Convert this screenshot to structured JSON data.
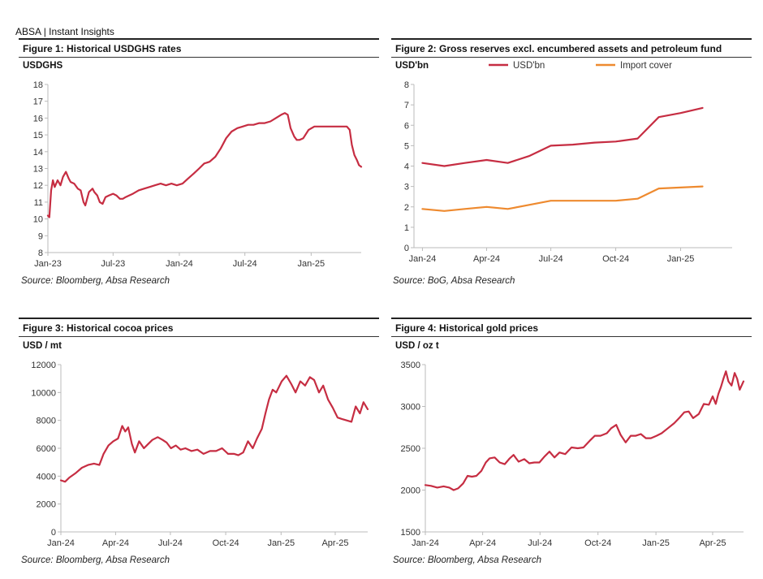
{
  "header": {
    "brand": "ABSA | Instant Insights"
  },
  "colors": {
    "red": "#c62d42",
    "orange": "#ee8a2f",
    "axis": "#bbbbbb"
  },
  "chart_data": [
    {
      "id": "fig1",
      "type": "line",
      "title": "Figure 1: Historical USDGHS rates",
      "ylabel": "USDGHS",
      "ylim": [
        8,
        18
      ],
      "yticks": [
        8,
        9,
        10,
        11,
        12,
        13,
        14,
        15,
        16,
        17,
        18
      ],
      "xlim": [
        "2023-01-01",
        "2025-05-20"
      ],
      "xticks": [
        {
          "date": "2023-01-01",
          "label": "Jan-23"
        },
        {
          "date": "2023-07-01",
          "label": "Jul-23"
        },
        {
          "date": "2024-01-01",
          "label": "Jan-24"
        },
        {
          "date": "2024-07-01",
          "label": "Jul-24"
        },
        {
          "date": "2025-01-01",
          "label": "Jan-25"
        }
      ],
      "source": "Source: Bloomberg, Absa Research",
      "series": [
        {
          "color": "#c62d42",
          "x": [
            "2023-01-01",
            "2023-01-05",
            "2023-01-10",
            "2023-01-15",
            "2023-01-20",
            "2023-01-28",
            "2023-02-05",
            "2023-02-12",
            "2023-02-20",
            "2023-02-28",
            "2023-03-05",
            "2023-03-15",
            "2023-03-25",
            "2023-04-02",
            "2023-04-10",
            "2023-04-15",
            "2023-04-25",
            "2023-05-05",
            "2023-05-10",
            "2023-05-18",
            "2023-05-25",
            "2023-06-02",
            "2023-06-10",
            "2023-06-20",
            "2023-07-01",
            "2023-07-10",
            "2023-07-20",
            "2023-07-28",
            "2023-08-05",
            "2023-08-15",
            "2023-08-25",
            "2023-09-10",
            "2023-09-25",
            "2023-10-10",
            "2023-10-25",
            "2023-11-10",
            "2023-11-25",
            "2023-12-10",
            "2023-12-25",
            "2024-01-10",
            "2024-01-25",
            "2024-02-10",
            "2024-02-25",
            "2024-03-10",
            "2024-03-25",
            "2024-04-10",
            "2024-04-25",
            "2024-05-10",
            "2024-05-25",
            "2024-06-10",
            "2024-06-25",
            "2024-07-10",
            "2024-07-25",
            "2024-08-10",
            "2024-08-25",
            "2024-09-10",
            "2024-09-25",
            "2024-10-10",
            "2024-10-20",
            "2024-10-28",
            "2024-11-05",
            "2024-11-15",
            "2024-11-22",
            "2024-11-30",
            "2024-12-10",
            "2024-12-25",
            "2025-01-10",
            "2025-01-25",
            "2025-02-10",
            "2025-02-25",
            "2025-03-10",
            "2025-03-25",
            "2025-04-10",
            "2025-04-18",
            "2025-04-24",
            "2025-05-01",
            "2025-05-08",
            "2025-05-14",
            "2025-05-20"
          ],
          "y": [
            10.2,
            10.1,
            11.7,
            12.3,
            11.9,
            12.3,
            12.0,
            12.5,
            12.8,
            12.4,
            12.2,
            12.1,
            11.8,
            11.7,
            11.0,
            10.8,
            11.6,
            11.8,
            11.6,
            11.4,
            11.0,
            10.9,
            11.3,
            11.4,
            11.5,
            11.4,
            11.2,
            11.2,
            11.3,
            11.4,
            11.5,
            11.7,
            11.8,
            11.9,
            12.0,
            12.1,
            12.0,
            12.1,
            12.0,
            12.1,
            12.4,
            12.7,
            13.0,
            13.3,
            13.4,
            13.7,
            14.2,
            14.8,
            15.2,
            15.4,
            15.5,
            15.6,
            15.6,
            15.7,
            15.7,
            15.8,
            16.0,
            16.2,
            16.3,
            16.2,
            15.4,
            14.9,
            14.7,
            14.7,
            14.8,
            15.3,
            15.5,
            15.5,
            15.5,
            15.5,
            15.5,
            15.5,
            15.5,
            15.3,
            14.4,
            13.8,
            13.5,
            13.2,
            13.1
          ]
        }
      ]
    },
    {
      "id": "fig2",
      "type": "line",
      "title": "Figure 2: Gross reserves excl. encumbered assets and petroleum fund",
      "ylabel": "USD'bn",
      "ylim": [
        0,
        8
      ],
      "yticks": [
        0,
        1,
        2,
        3,
        4,
        5,
        6,
        7,
        8
      ],
      "xlim": [
        "2023-12-20",
        "2025-03-15"
      ],
      "xticks": [
        {
          "date": "2024-01-01",
          "label": "Jan-24"
        },
        {
          "date": "2024-04-01",
          "label": "Apr-24"
        },
        {
          "date": "2024-07-01",
          "label": "Jul-24"
        },
        {
          "date": "2024-10-01",
          "label": "Oct-24"
        },
        {
          "date": "2025-01-01",
          "label": "Jan-25"
        }
      ],
      "source": "Source: BoG, Absa Research",
      "series": [
        {
          "name": "USD'bn",
          "color": "#c62d42",
          "x": [
            "2024-01-01",
            "2024-02-01",
            "2024-03-01",
            "2024-04-01",
            "2024-05-01",
            "2024-06-01",
            "2024-07-01",
            "2024-08-01",
            "2024-09-01",
            "2024-10-01",
            "2024-11-01",
            "2024-12-01",
            "2025-01-01",
            "2025-02-01"
          ],
          "y": [
            4.15,
            4.0,
            4.15,
            4.3,
            4.15,
            4.5,
            5.0,
            5.05,
            5.15,
            5.2,
            5.35,
            6.4,
            6.6,
            6.85
          ]
        },
        {
          "name": "Import cover",
          "color": "#ee8a2f",
          "x": [
            "2024-01-01",
            "2024-02-01",
            "2024-03-01",
            "2024-04-01",
            "2024-05-01",
            "2024-06-01",
            "2024-07-01",
            "2024-08-01",
            "2024-09-01",
            "2024-10-01",
            "2024-11-01",
            "2024-12-01",
            "2025-01-01",
            "2025-02-01"
          ],
          "y": [
            1.9,
            1.8,
            1.9,
            2.0,
            1.9,
            2.1,
            2.3,
            2.3,
            2.3,
            2.3,
            2.4,
            2.9,
            2.95,
            3.0
          ]
        }
      ]
    },
    {
      "id": "fig3",
      "type": "line",
      "title": "Figure 3: Historical cocoa prices",
      "ylabel": "USD / mt",
      "ylim": [
        0,
        12000
      ],
      "yticks": [
        0,
        2000,
        4000,
        6000,
        8000,
        10000,
        12000
      ],
      "xlim": [
        "2024-01-01",
        "2025-05-25"
      ],
      "xticks": [
        {
          "date": "2024-01-01",
          "label": "Jan-24"
        },
        {
          "date": "2024-04-01",
          "label": "Apr-24"
        },
        {
          "date": "2024-07-01",
          "label": "Jul-24"
        },
        {
          "date": "2024-10-01",
          "label": "Oct-24"
        },
        {
          "date": "2025-01-01",
          "label": "Jan-25"
        },
        {
          "date": "2025-04-01",
          "label": "Apr-25"
        }
      ],
      "source": "Source: Bloomberg, Absa Research",
      "series": [
        {
          "color": "#c62d42",
          "x": [
            "2024-01-01",
            "2024-01-08",
            "2024-01-15",
            "2024-01-25",
            "2024-02-05",
            "2024-02-15",
            "2024-02-25",
            "2024-03-05",
            "2024-03-12",
            "2024-03-20",
            "2024-03-28",
            "2024-04-05",
            "2024-04-12",
            "2024-04-17",
            "2024-04-22",
            "2024-04-28",
            "2024-05-03",
            "2024-05-10",
            "2024-05-18",
            "2024-05-25",
            "2024-06-01",
            "2024-06-10",
            "2024-06-18",
            "2024-06-25",
            "2024-07-02",
            "2024-07-10",
            "2024-07-18",
            "2024-07-26",
            "2024-08-05",
            "2024-08-15",
            "2024-08-25",
            "2024-09-05",
            "2024-09-15",
            "2024-09-25",
            "2024-10-05",
            "2024-10-15",
            "2024-10-22",
            "2024-10-30",
            "2024-11-07",
            "2024-11-15",
            "2024-11-22",
            "2024-11-30",
            "2024-12-06",
            "2024-12-12",
            "2024-12-18",
            "2024-12-24",
            "2025-01-02",
            "2025-01-10",
            "2025-01-18",
            "2025-01-25",
            "2025-02-02",
            "2025-02-10",
            "2025-02-18",
            "2025-02-25",
            "2025-03-05",
            "2025-03-12",
            "2025-03-20",
            "2025-03-28",
            "2025-04-05",
            "2025-04-12",
            "2025-04-20",
            "2025-04-28",
            "2025-05-05",
            "2025-05-12",
            "2025-05-18",
            "2025-05-25"
          ],
          "y": [
            3700,
            3600,
            3900,
            4200,
            4600,
            4800,
            4900,
            4800,
            5600,
            6200,
            6500,
            6700,
            7600,
            7200,
            7500,
            6300,
            5700,
            6500,
            6000,
            6300,
            6600,
            6800,
            6600,
            6400,
            6000,
            6200,
            5900,
            6000,
            5800,
            5900,
            5600,
            5800,
            5800,
            6000,
            5600,
            5600,
            5500,
            5700,
            6500,
            6000,
            6700,
            7400,
            8500,
            9500,
            10200,
            10000,
            10800,
            11200,
            10600,
            10000,
            10800,
            10500,
            11100,
            10900,
            10000,
            10500,
            9500,
            8900,
            8200,
            8100,
            8000,
            7900,
            9000,
            8500,
            9300,
            8800
          ]
        }
      ]
    },
    {
      "id": "fig4",
      "type": "line",
      "title": "Figure 4: Historical gold prices",
      "ylabel": "USD / oz t",
      "ylim": [
        1500,
        3500
      ],
      "yticks": [
        1500,
        2000,
        2500,
        3000,
        3500
      ],
      "xlim": [
        "2024-01-01",
        "2025-05-20"
      ],
      "xticks": [
        {
          "date": "2024-01-01",
          "label": "Jan-24"
        },
        {
          "date": "2024-04-01",
          "label": "Apr-24"
        },
        {
          "date": "2024-07-01",
          "label": "Jul-24"
        },
        {
          "date": "2024-10-01",
          "label": "Oct-24"
        },
        {
          "date": "2025-01-01",
          "label": "Jan-25"
        },
        {
          "date": "2025-04-01",
          "label": "Apr-25"
        }
      ],
      "source": "Source: Bloomberg, Absa Research",
      "series": [
        {
          "color": "#c62d42",
          "x": [
            "2024-01-01",
            "2024-01-10",
            "2024-01-20",
            "2024-01-30",
            "2024-02-08",
            "2024-02-15",
            "2024-02-22",
            "2024-03-01",
            "2024-03-08",
            "2024-03-15",
            "2024-03-22",
            "2024-03-30",
            "2024-04-06",
            "2024-04-12",
            "2024-04-20",
            "2024-04-28",
            "2024-05-06",
            "2024-05-14",
            "2024-05-20",
            "2024-05-28",
            "2024-06-06",
            "2024-06-14",
            "2024-06-22",
            "2024-06-30",
            "2024-07-08",
            "2024-07-16",
            "2024-07-24",
            "2024-08-01",
            "2024-08-10",
            "2024-08-20",
            "2024-08-30",
            "2024-09-08",
            "2024-09-18",
            "2024-09-26",
            "2024-10-05",
            "2024-10-15",
            "2024-10-22",
            "2024-10-30",
            "2024-11-06",
            "2024-11-14",
            "2024-11-22",
            "2024-11-30",
            "2024-12-08",
            "2024-12-16",
            "2024-12-24",
            "2025-01-02",
            "2025-01-10",
            "2025-01-20",
            "2025-01-30",
            "2025-02-08",
            "2025-02-15",
            "2025-02-22",
            "2025-03-01",
            "2025-03-10",
            "2025-03-18",
            "2025-03-26",
            "2025-04-01",
            "2025-04-06",
            "2025-04-10",
            "2025-04-14",
            "2025-04-18",
            "2025-04-22",
            "2025-04-26",
            "2025-05-01",
            "2025-05-06",
            "2025-05-10",
            "2025-05-14",
            "2025-05-20"
          ],
          "y": [
            2060,
            2050,
            2030,
            2045,
            2030,
            2000,
            2020,
            2080,
            2170,
            2160,
            2170,
            2230,
            2330,
            2380,
            2390,
            2330,
            2310,
            2380,
            2420,
            2340,
            2370,
            2320,
            2330,
            2330,
            2400,
            2460,
            2390,
            2450,
            2430,
            2510,
            2500,
            2510,
            2590,
            2650,
            2650,
            2680,
            2740,
            2780,
            2660,
            2570,
            2650,
            2650,
            2670,
            2620,
            2620,
            2650,
            2680,
            2740,
            2800,
            2870,
            2930,
            2940,
            2860,
            2910,
            3030,
            3020,
            3120,
            3030,
            3150,
            3230,
            3330,
            3420,
            3300,
            3250,
            3400,
            3330,
            3200,
            3300
          ]
        }
      ]
    }
  ]
}
